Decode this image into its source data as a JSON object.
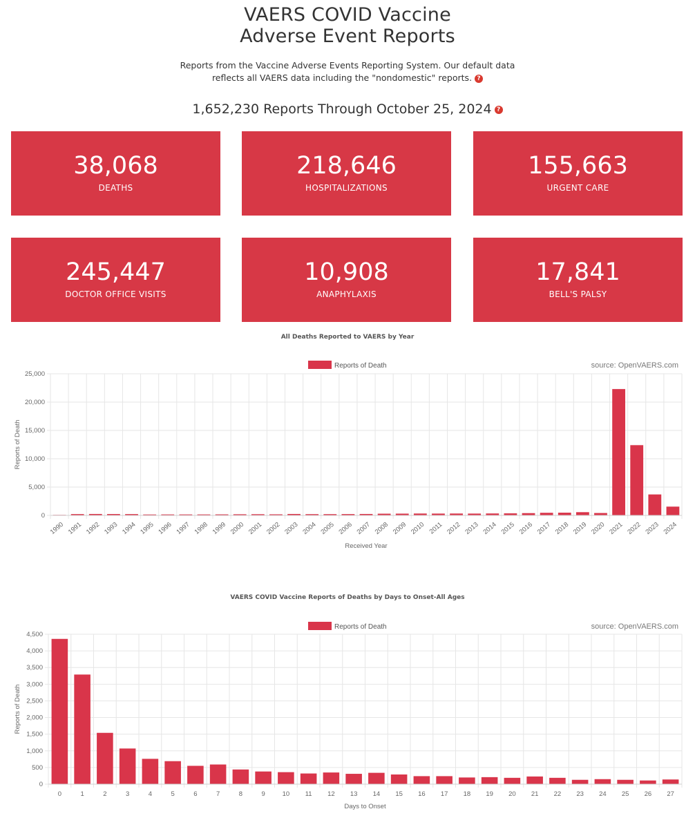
{
  "header": {
    "title_line1": "VAERS COVID Vaccine",
    "title_line2": "Adverse Event Reports",
    "subtitle_line1": "Reports from the Vaccine Adverse Events Reporting System. Our default data",
    "subtitle_line2": "reflects all VAERS data including the \"nondomestic\" reports.",
    "help_glyph": "?",
    "reports_line": "1,652,230 Reports Through October 25, 2024"
  },
  "stats": [
    {
      "value": "38,068",
      "label": "DEATHS"
    },
    {
      "value": "218,646",
      "label": "HOSPITALIZATIONS"
    },
    {
      "value": "155,663",
      "label": "URGENT CARE"
    },
    {
      "value": "245,447",
      "label": "DOCTOR OFFICE VISITS"
    },
    {
      "value": "10,908",
      "label": "ANAPHYLAXIS"
    },
    {
      "value": "17,841",
      "label": "BELL'S PALSY"
    }
  ],
  "colors": {
    "accent": "#d73846",
    "bar": "#d9354a",
    "help": "#d9392f"
  },
  "chart_data": [
    {
      "type": "bar",
      "title": "All Deaths Reported to VAERS by Year",
      "legend": "Reports of Death",
      "legend_position": "top",
      "source": "source: OpenVAERS.com",
      "xlabel": "Received Year",
      "ylabel": "Reports of Death",
      "ylim": [
        0,
        25000
      ],
      "yticks": [
        0,
        5000,
        10000,
        15000,
        20000,
        25000
      ],
      "ytick_labels": [
        "0",
        "5,000",
        "10,000",
        "15,000",
        "20,000",
        "25,000"
      ],
      "grid": true,
      "categories": [
        "1990",
        "1991",
        "1992",
        "1993",
        "1994",
        "1995",
        "1996",
        "1997",
        "1998",
        "1999",
        "2000",
        "2001",
        "2002",
        "2003",
        "2004",
        "2005",
        "2006",
        "2007",
        "2008",
        "2009",
        "2010",
        "2011",
        "2012",
        "2013",
        "2014",
        "2015",
        "2016",
        "2017",
        "2018",
        "2019",
        "2020",
        "2021",
        "2022",
        "2023",
        "2024"
      ],
      "values": [
        90,
        230,
        250,
        240,
        230,
        160,
        170,
        170,
        170,
        180,
        200,
        210,
        190,
        250,
        220,
        220,
        230,
        250,
        300,
        310,
        330,
        320,
        330,
        320,
        340,
        360,
        400,
        460,
        480,
        570,
        420,
        22300,
        12400,
        3700,
        1550
      ]
    },
    {
      "type": "bar",
      "title": "VAERS COVID Vaccine Reports of Deaths by Days to Onset-All Ages",
      "legend": "Reports of Death",
      "legend_position": "top",
      "source": "source: OpenVAERS.com",
      "xlabel": "Days to Onset",
      "ylabel": "Reports of Death",
      "ylim": [
        0,
        4500
      ],
      "yticks": [
        0,
        500,
        1000,
        1500,
        2000,
        2500,
        3000,
        3500,
        4000,
        4500
      ],
      "ytick_labels": [
        "0",
        "500",
        "1,000",
        "1,500",
        "2,000",
        "2,500",
        "3,000",
        "3,500",
        "4,000",
        "4,500"
      ],
      "grid": true,
      "categories": [
        "0",
        "1",
        "2",
        "3",
        "4",
        "5",
        "6",
        "7",
        "8",
        "9",
        "10",
        "11",
        "12",
        "13",
        "14",
        "15",
        "16",
        "17",
        "18",
        "19",
        "20",
        "21",
        "22",
        "23",
        "24",
        "25",
        "26",
        "27"
      ],
      "values": [
        4360,
        3290,
        1540,
        1070,
        760,
        690,
        550,
        590,
        440,
        380,
        360,
        320,
        350,
        310,
        340,
        290,
        240,
        240,
        200,
        210,
        190,
        230,
        190,
        130,
        150,
        130,
        110,
        140
      ]
    }
  ]
}
